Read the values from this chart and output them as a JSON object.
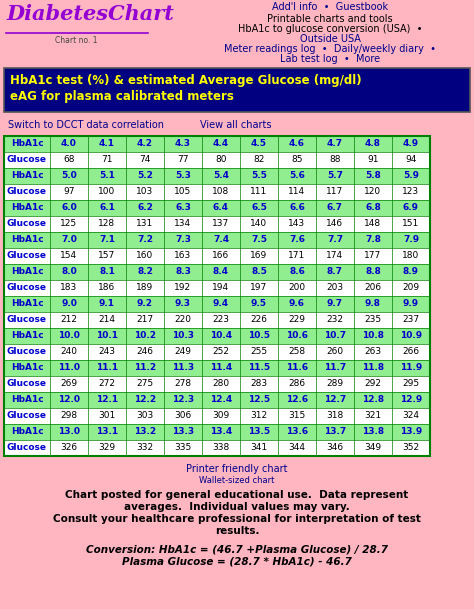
{
  "bg_color": "#ffb6c1",
  "title_text": "DiabetesChart",
  "subtitle_text": "Chart no. 1",
  "header_line1": "Add'l info  •  Guestbook",
  "header_line2": "Printable charts and tools",
  "header_line3": "HbA1c to glucose conversion (USA)  •",
  "header_line4": "Outside USA",
  "header_line5": "Meter readings log  •  Daily/weekly diary  •",
  "header_line6": "Lab test log  •  More",
  "box_title1": "HbA1c test (%) & estimated Average Glucose (mg/dl)",
  "box_title2": "eAG for plasma calibrated meters",
  "box_bg": "#000080",
  "box_fg": "#ffff00",
  "switch_text": "Switch to DCCT data correlation",
  "view_text": "View all charts",
  "table_rows": [
    [
      "HbA1c",
      "4.0",
      "4.1",
      "4.2",
      "4.3",
      "4.4",
      "4.5",
      "4.6",
      "4.7",
      "4.8",
      "4.9"
    ],
    [
      "Glucose",
      "68",
      "71",
      "74",
      "77",
      "80",
      "82",
      "85",
      "88",
      "91",
      "94"
    ],
    [
      "HbA1c",
      "5.0",
      "5.1",
      "5.2",
      "5.3",
      "5.4",
      "5.5",
      "5.6",
      "5.7",
      "5.8",
      "5.9"
    ],
    [
      "Glucose",
      "97",
      "100",
      "103",
      "105",
      "108",
      "111",
      "114",
      "117",
      "120",
      "123"
    ],
    [
      "HbA1c",
      "6.0",
      "6.1",
      "6.2",
      "6.3",
      "6.4",
      "6.5",
      "6.6",
      "6.7",
      "6.8",
      "6.9"
    ],
    [
      "Glucose",
      "125",
      "128",
      "131",
      "134",
      "137",
      "140",
      "143",
      "146",
      "148",
      "151"
    ],
    [
      "HbA1c",
      "7.0",
      "7.1",
      "7.2",
      "7.3",
      "7.4",
      "7.5",
      "7.6",
      "7.7",
      "7.8",
      "7.9"
    ],
    [
      "Glucose",
      "154",
      "157",
      "160",
      "163",
      "166",
      "169",
      "171",
      "174",
      "177",
      "180"
    ],
    [
      "HbA1c",
      "8.0",
      "8.1",
      "8.2",
      "8.3",
      "8.4",
      "8.5",
      "8.6",
      "8.7",
      "8.8",
      "8.9"
    ],
    [
      "Glucose",
      "183",
      "186",
      "189",
      "192",
      "194",
      "197",
      "200",
      "203",
      "206",
      "209"
    ],
    [
      "HbA1c",
      "9.0",
      "9.1",
      "9.2",
      "9.3",
      "9.4",
      "9.5",
      "9.6",
      "9.7",
      "9.8",
      "9.9"
    ],
    [
      "Glucose",
      "212",
      "214",
      "217",
      "220",
      "223",
      "226",
      "229",
      "232",
      "235",
      "237"
    ],
    [
      "HbA1c",
      "10.0",
      "10.1",
      "10.2",
      "10.3",
      "10.4",
      "10.5",
      "10.6",
      "10.7",
      "10.8",
      "10.9"
    ],
    [
      "Glucose",
      "240",
      "243",
      "246",
      "249",
      "252",
      "255",
      "258",
      "260",
      "263",
      "266"
    ],
    [
      "HbA1c",
      "11.0",
      "11.1",
      "11.2",
      "11.3",
      "11.4",
      "11.5",
      "11.6",
      "11.7",
      "11.8",
      "11.9"
    ],
    [
      "Glucose",
      "269",
      "272",
      "275",
      "278",
      "280",
      "283",
      "286",
      "289",
      "292",
      "295"
    ],
    [
      "HbA1c",
      "12.0",
      "12.1",
      "12.2",
      "12.3",
      "12.4",
      "12.5",
      "12.6",
      "12.7",
      "12.8",
      "12.9"
    ],
    [
      "Glucose",
      "298",
      "301",
      "303",
      "306",
      "309",
      "312",
      "315",
      "318",
      "321",
      "324"
    ],
    [
      "HbA1c",
      "13.0",
      "13.1",
      "13.2",
      "13.3",
      "13.4",
      "13.5",
      "13.6",
      "13.7",
      "13.8",
      "13.9"
    ],
    [
      "Glucose",
      "326",
      "329",
      "332",
      "335",
      "338",
      "341",
      "344",
      "346",
      "349",
      "352"
    ]
  ],
  "hba1c_row_color": "#90ee90",
  "glucose_row_color": "#ffffff",
  "hba1c_text_color": "#0000cc",
  "glucose_text_color": "#000000",
  "label_color": "#0000cc",
  "table_border_color": "#008000",
  "footer_link1": "Printer friendly chart",
  "footer_link2": "Wallet-sized chart",
  "footer_bold1": "Chart posted for general educational use.  Data represent",
  "footer_bold2": "averages.  Individual values may vary.",
  "footer_bold3": "Consult your healthcare professional for interpretation of test",
  "footer_bold4": "results.",
  "footer_italic1": "Conversion: HbA1c = (46.7 +Plasma Glucose) / 28.7",
  "footer_italic2": "Plasma Glucose = (28.7 * HbA1c) - 46.7"
}
